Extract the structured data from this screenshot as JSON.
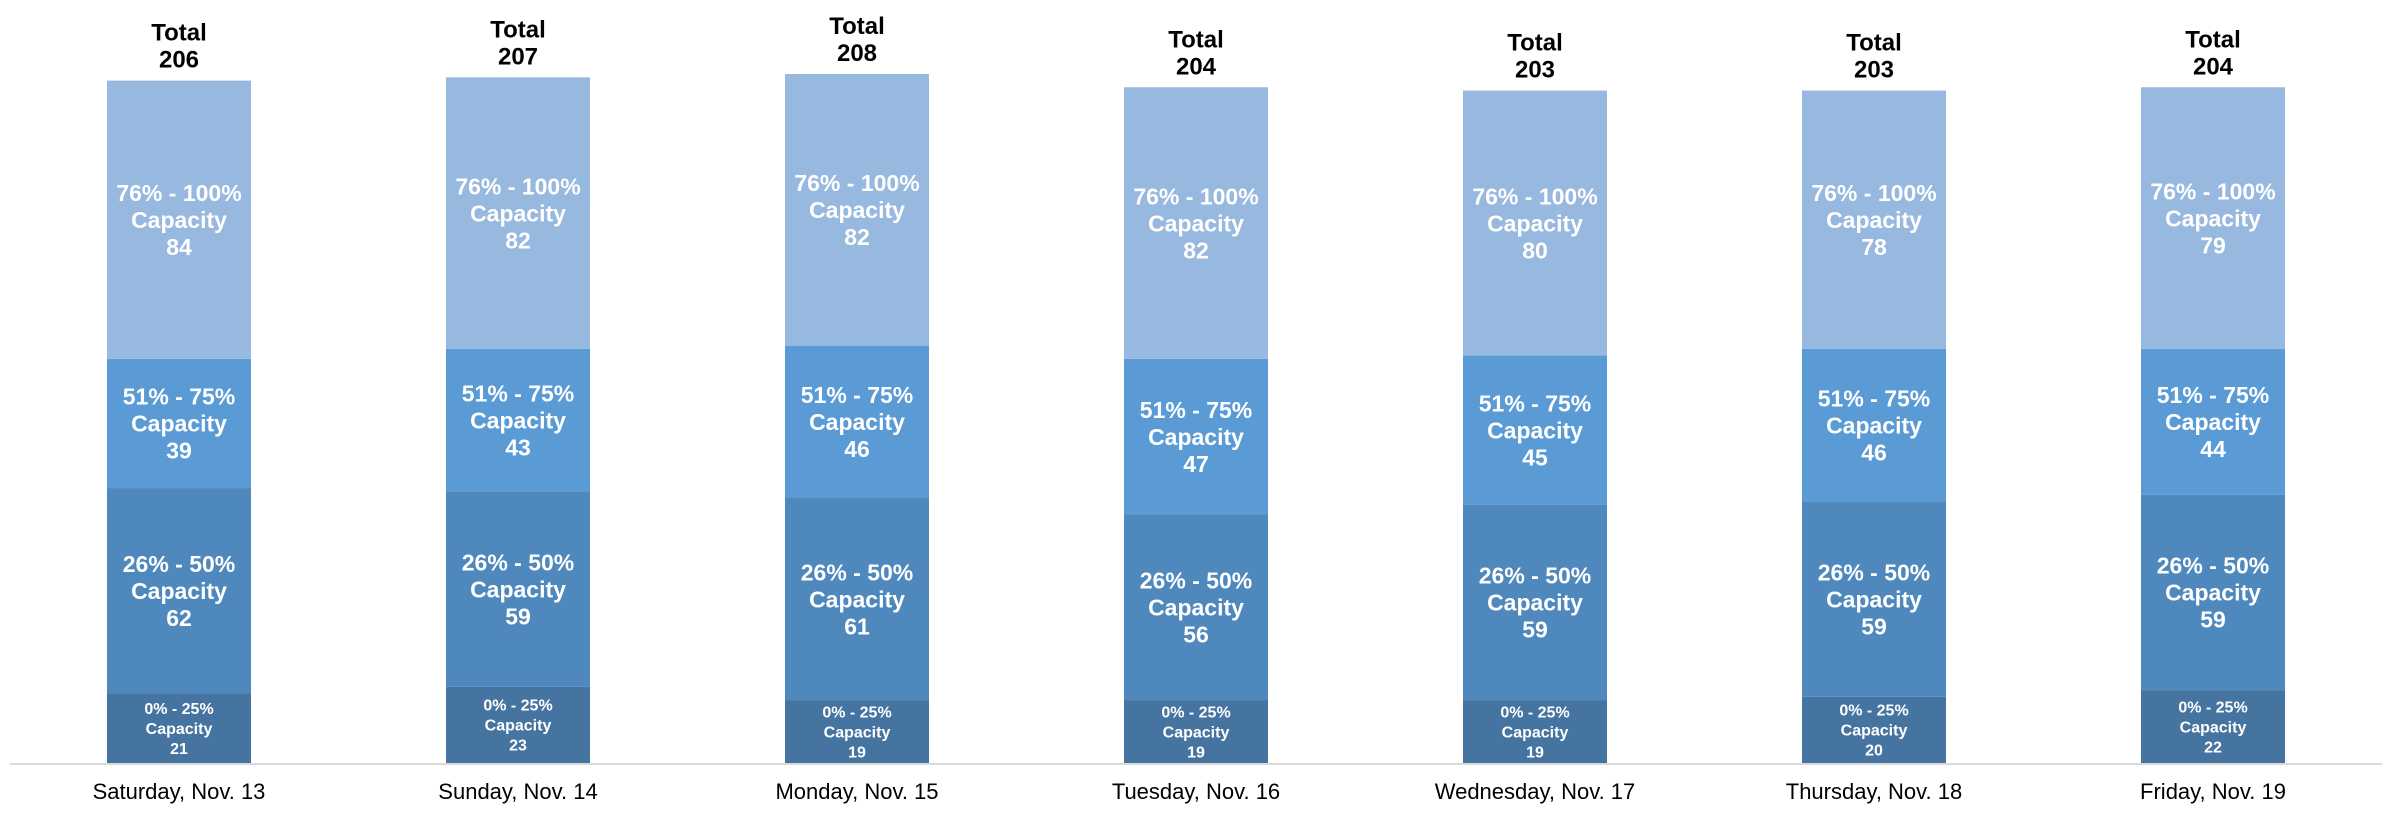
{
  "chart_data": {
    "type": "bar",
    "stacked": true,
    "categories": [
      "Saturday, Nov. 13",
      "Sunday, Nov. 14",
      "Monday, Nov. 15",
      "Tuesday, Nov. 16",
      "Wednesday, Nov. 17",
      "Thursday, Nov. 18",
      "Friday, Nov. 19"
    ],
    "series": [
      {
        "name": "0% - 25% Capacity",
        "label_lines": [
          "0% - 25%",
          "Capacity"
        ],
        "values": [
          21,
          23,
          19,
          19,
          19,
          20,
          22
        ],
        "color": "#4674a1"
      },
      {
        "name": "26% - 50% Capacity",
        "label_lines": [
          "26% - 50%",
          "Capacity"
        ],
        "values": [
          62,
          59,
          61,
          56,
          59,
          59,
          59
        ],
        "color": "#4f88bd"
      },
      {
        "name": "51% - 75% Capacity",
        "label_lines": [
          "51% - 75%",
          "Capacity"
        ],
        "values": [
          39,
          43,
          46,
          47,
          45,
          46,
          44
        ],
        "color": "#5a9bd6"
      },
      {
        "name": "76% - 100% Capacity",
        "label_lines": [
          "76% - 100%",
          "Capacity"
        ],
        "values": [
          84,
          82,
          82,
          82,
          80,
          78,
          79
        ],
        "color": "#97b8df"
      }
    ],
    "total_label": "Total",
    "totals": [
      206,
      207,
      208,
      204,
      203,
      203,
      204
    ],
    "ylim": [
      0,
      208
    ],
    "grid": false,
    "legend": "none",
    "axis_line_color": "#d9d9d9"
  }
}
